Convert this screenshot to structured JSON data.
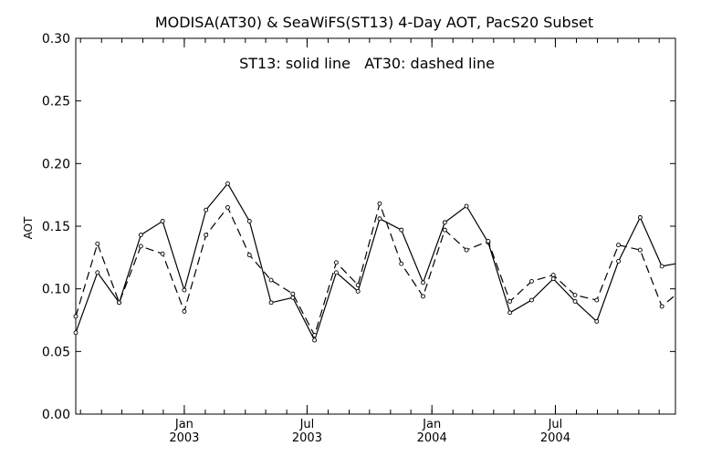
{
  "chart_data": {
    "type": "line",
    "title": "MODISA(AT30) & SeaWiFS(ST13) 4-Day AOT, PacS20 Subset",
    "annotation": "ST13: solid line   AT30: dashed line",
    "ylabel": "AOT",
    "xlabel": "",
    "ylim": [
      0.0,
      0.3
    ],
    "yticks": [
      0.0,
      0.05,
      0.1,
      0.15,
      0.2,
      0.25,
      0.3
    ],
    "ytick_labels": [
      "0.00",
      "0.05",
      "0.10",
      "0.15",
      "0.20",
      "0.25",
      "0.30"
    ],
    "xlim": [
      "2002-07-25",
      "2004-12-25"
    ],
    "xtick_labels": [
      {
        "date": "2003-01-01",
        "month": "Jan",
        "year": "2003"
      },
      {
        "date": "2003-07-01",
        "month": "Jul",
        "year": "2003"
      },
      {
        "date": "2004-01-01",
        "month": "Jan",
        "year": "2004"
      },
      {
        "date": "2004-07-01",
        "month": "Jul",
        "year": "2004"
      }
    ],
    "x": [
      "2002-07-25",
      "2002-08-26",
      "2002-09-27",
      "2002-10-29",
      "2002-11-30",
      "2003-01-01",
      "2003-02-02",
      "2003-03-06",
      "2003-04-07",
      "2003-05-09",
      "2003-06-10",
      "2003-07-12",
      "2003-08-13",
      "2003-09-14",
      "2003-10-16",
      "2003-11-17",
      "2003-12-19",
      "2004-01-20",
      "2004-02-21",
      "2004-03-24",
      "2004-04-25",
      "2004-05-27",
      "2004-06-28",
      "2004-07-30",
      "2004-08-31",
      "2004-10-02",
      "2004-11-03",
      "2004-12-05",
      "2004-12-25"
    ],
    "series": [
      {
        "line": "solid",
        "values": [
          0.065,
          0.113,
          0.089,
          0.143,
          0.154,
          0.099,
          0.163,
          0.184,
          0.154,
          0.089,
          0.093,
          0.059,
          0.113,
          0.098,
          0.156,
          0.147,
          0.105,
          0.153,
          0.166,
          0.137,
          0.081,
          0.091,
          0.108,
          0.09,
          0.074,
          0.122,
          0.157,
          0.118,
          0.12
        ]
      },
      {
        "line": "dashed",
        "values": [
          0.078,
          0.136,
          0.089,
          0.134,
          0.128,
          0.082,
          0.143,
          0.165,
          0.127,
          0.107,
          0.096,
          0.063,
          0.121,
          0.103,
          0.168,
          0.12,
          0.094,
          0.147,
          0.131,
          0.138,
          0.09,
          0.106,
          0.111,
          0.095,
          0.091,
          0.135,
          0.131,
          0.086,
          0.095
        ]
      }
    ],
    "grid": false,
    "colors": {
      "line": "#000000",
      "background": "#ffffff"
    }
  }
}
